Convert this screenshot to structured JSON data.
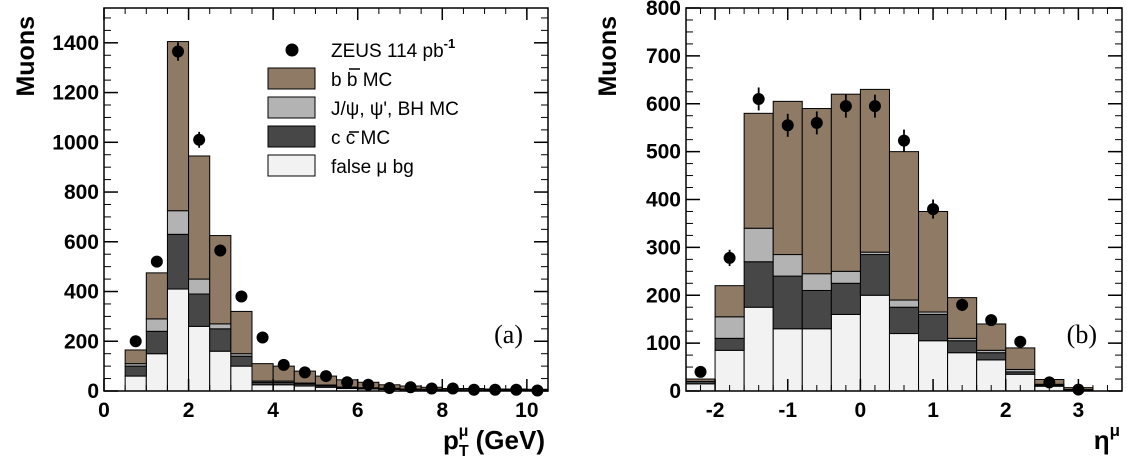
{
  "colors": {
    "bb": "#8f7a66",
    "jpsi": "#b3b3b3",
    "cc": "#474747",
    "false_mu": "#f2f2f2",
    "data": "#000000"
  },
  "legend": [
    {
      "key": "data",
      "label": "ZEUS 114 pb",
      "sup": "-1",
      "marker": "dot"
    },
    {
      "key": "bb",
      "label": "b b MC",
      "marker": "box",
      "bar_over_second_b": true
    },
    {
      "key": "jpsi",
      "label": "J/ψ, ψ', BH MC",
      "marker": "box"
    },
    {
      "key": "cc",
      "label": "c c MC",
      "marker": "box",
      "bar_over_second_c": true
    },
    {
      "key": "false_mu",
      "label": "false μ bg",
      "marker": "box"
    }
  ],
  "chart_data": [
    {
      "type": "histogram",
      "panel_label": "(a)",
      "ylabel": "Muons",
      "xlabel_main": "p",
      "xlabel_sup": "μ",
      "xlabel_sub": "T",
      "xlabel_unit": " (GeV)",
      "xlim": [
        0,
        10.5
      ],
      "ylim": [
        0,
        1540
      ],
      "xticks": [
        0,
        2,
        4,
        6,
        8,
        10
      ],
      "yticks": [
        0,
        200,
        400,
        600,
        800,
        1000,
        1200,
        1400
      ],
      "bin_edges": [
        0.5,
        1.0,
        1.5,
        2.0,
        2.5,
        3.0,
        3.5,
        4.0,
        4.5,
        5.0,
        5.5,
        6.0,
        6.5,
        7.0,
        7.5,
        8.0,
        8.5,
        9.0,
        9.5,
        10.0,
        10.5
      ],
      "stack": [
        {
          "key": "false_mu",
          "values": [
            60,
            150,
            410,
            260,
            160,
            100,
            25,
            25,
            20,
            15,
            10,
            8,
            6,
            5,
            4,
            3,
            3,
            2,
            2,
            2
          ]
        },
        {
          "key": "cc",
          "values": [
            40,
            90,
            220,
            130,
            90,
            40,
            10,
            10,
            8,
            6,
            4,
            3,
            3,
            2,
            2,
            1,
            1,
            1,
            1,
            1
          ]
        },
        {
          "key": "jpsi",
          "values": [
            10,
            50,
            95,
            60,
            20,
            10,
            5,
            5,
            4,
            3,
            2,
            2,
            2,
            1,
            1,
            1,
            1,
            1,
            1,
            1
          ]
        },
        {
          "key": "bb",
          "values": [
            55,
            185,
            680,
            495,
            355,
            170,
            70,
            60,
            48,
            36,
            29,
            22,
            14,
            12,
            8,
            5,
            5,
            4,
            4,
            3
          ]
        }
      ],
      "data_points": {
        "x": [
          0.75,
          1.25,
          1.75,
          2.25,
          2.75,
          3.25,
          3.75,
          4.25,
          4.75,
          5.25,
          5.75,
          6.25,
          6.75,
          7.25,
          7.75,
          8.25,
          8.75,
          9.25,
          9.75,
          10.25
        ],
        "y": [
          200,
          520,
          1365,
          1010,
          565,
          380,
          215,
          105,
          75,
          60,
          35,
          25,
          12,
          15,
          10,
          10,
          5,
          5,
          5,
          2
        ],
        "err": [
          15,
          23,
          37,
          32,
          24,
          20,
          15,
          10,
          9,
          8,
          6,
          5,
          4,
          4,
          3,
          3,
          2,
          2,
          2,
          2
        ]
      }
    },
    {
      "type": "histogram",
      "panel_label": "(b)",
      "ylabel": "Muons",
      "xlabel_main": "η",
      "xlabel_sup": "μ",
      "xlim": [
        -2.4,
        3.6
      ],
      "ylim": [
        0,
        800
      ],
      "xticks": [
        -2,
        -1,
        0,
        1,
        2,
        3
      ],
      "yticks": [
        0,
        100,
        200,
        300,
        400,
        500,
        600,
        700,
        800
      ],
      "bin_edges": [
        -2.4,
        -2.0,
        -1.6,
        -1.2,
        -0.8,
        -0.4,
        0.0,
        0.4,
        0.8,
        1.2,
        1.6,
        2.0,
        2.4,
        2.8,
        3.2,
        3.6
      ],
      "stack": [
        {
          "key": "false_mu",
          "values": [
            15,
            85,
            175,
            130,
            130,
            160,
            200,
            120,
            105,
            80,
            65,
            35,
            10,
            2,
            0
          ]
        },
        {
          "key": "cc",
          "values": [
            5,
            25,
            95,
            110,
            80,
            65,
            85,
            55,
            55,
            25,
            15,
            5,
            2,
            1,
            0
          ]
        },
        {
          "key": "jpsi",
          "values": [
            0,
            45,
            70,
            45,
            35,
            25,
            5,
            15,
            5,
            5,
            5,
            5,
            2,
            0,
            0
          ]
        },
        {
          "key": "bb",
          "values": [
            5,
            65,
            240,
            320,
            345,
            370,
            340,
            310,
            210,
            85,
            55,
            45,
            10,
            4,
            0
          ]
        }
      ],
      "data_points": {
        "x": [
          -2.2,
          -1.8,
          -1.4,
          -1.0,
          -0.6,
          -0.2,
          0.2,
          0.6,
          1.0,
          1.4,
          1.8,
          2.2,
          2.6,
          3.0
        ],
        "y": [
          40,
          278,
          610,
          555,
          560,
          595,
          595,
          523,
          380,
          180,
          148,
          103,
          18,
          3
        ],
        "err": [
          6,
          17,
          24,
          24,
          24,
          24,
          24,
          23,
          20,
          13,
          12,
          10,
          4,
          2
        ]
      }
    }
  ]
}
